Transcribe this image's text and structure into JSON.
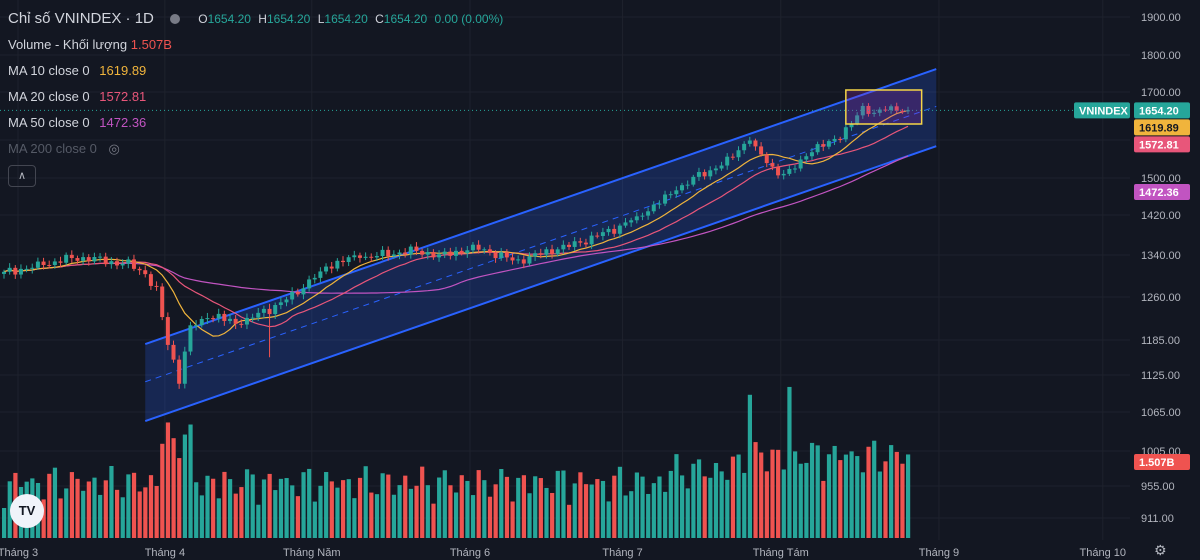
{
  "header": {
    "title": "Chỉ số VNINDEX · 1D",
    "ohlc": [
      {
        "key": "O",
        "value": "1654.20"
      },
      {
        "key": "H",
        "value": "1654.20"
      },
      {
        "key": "L",
        "value": "1654.20"
      },
      {
        "key": "C",
        "value": "1654.20"
      }
    ],
    "change": "0.00 (0.00%)"
  },
  "legend": {
    "volume": {
      "label": "Volume - Khối lượng",
      "value": "1.507B",
      "color": "#ef5350"
    },
    "ma10": {
      "label": "MA 10 close 0",
      "value": "1619.89",
      "color": "#f0b43c"
    },
    "ma20": {
      "label": "MA 20 close 0",
      "value": "1572.81",
      "color": "#e8567a"
    },
    "ma50": {
      "label": "MA 50 close 0",
      "value": "1472.36",
      "color": "#c154c1"
    },
    "ma200": {
      "label": "MA 200 close 0",
      "value": "",
      "color": "#555a66"
    }
  },
  "price_tags": {
    "symbol": "VNINDEX",
    "last": "1654.20",
    "ma10": "1619.89",
    "ma20": "1572.81",
    "ma50": "1472.36",
    "volume": "1.507B"
  },
  "colors": {
    "up": "#26a69a",
    "down": "#ef5350",
    "channel": "#2962ff",
    "highlight": "#f5d547",
    "background": "#131722"
  },
  "chart_data": {
    "type": "candlestick",
    "title": "Chỉ số VNINDEX · 1D",
    "y_ticks": [
      "1900.00",
      "1800.00",
      "1700.00",
      "1580.00",
      "1500.00",
      "1420.00",
      "1340.00",
      "1260.00",
      "1185.00",
      "1125.00",
      "1065.00",
      "1005.00",
      "955.00",
      "911.00"
    ],
    "y_tick_values": [
      1900,
      1800,
      1700,
      1580,
      1500,
      1420,
      1340,
      1260,
      1185,
      1125,
      1065,
      1005,
      955,
      911
    ],
    "x_labels": [
      "Tháng 3",
      "Tháng 4",
      "Tháng Năm",
      "Tháng 6",
      "Tháng 7",
      "Tháng Tám",
      "Tháng 9",
      "Tháng 10"
    ],
    "x_label_index": [
      0,
      26,
      52,
      80,
      107,
      135,
      163,
      192
    ],
    "channel": {
      "upper": [
        [
          25,
          1178
        ],
        [
          165,
          1762
        ]
      ],
      "lower": [
        [
          25,
          1051
        ],
        [
          165,
          1567
        ]
      ],
      "mid": [
        [
          25,
          1114
        ],
        [
          165,
          1664
        ]
      ]
    },
    "highlight_box": {
      "from_index": 149,
      "to_index": 161,
      "low": 1620,
      "high": 1685
    },
    "last_price": 1654.2,
    "volume_last": "1.507B"
  }
}
